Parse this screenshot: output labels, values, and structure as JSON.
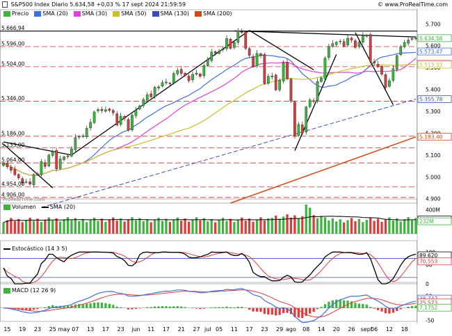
{
  "header": {
    "title": "S&P500 Index Diario 5.634,58 +0,03 % 17 sept 2024 21:59:59",
    "site": "© www.ProRealTime.com",
    "watermark": "ProRealTime.com"
  },
  "colors": {
    "up": "#3fb33f",
    "down": "#e03a3a",
    "sma20": "#3f6fe0",
    "sma30": "#e040e0",
    "sma50": "#c8c028",
    "sma130": "#3a4fbf",
    "sma200": "#d04a16",
    "grid": "#d03030"
  },
  "price_legend": [
    {
      "label": "Precio",
      "color": "#3fb33f",
      "icon": "candle-icon"
    },
    {
      "label": "SMA (20)",
      "color": "#3f6fe0",
      "icon": "line-icon"
    },
    {
      "label": "SMA (30)",
      "color": "#e040e0",
      "icon": "line-icon"
    },
    {
      "label": "SMA (50)",
      "color": "#c8c028",
      "icon": "line-icon"
    },
    {
      "label": "SMA (130)",
      "color": "#3a4fbf",
      "icon": "line-icon"
    },
    {
      "label": "SMA (200)",
      "color": "#d04a16",
      "icon": "line-icon"
    }
  ],
  "volume_legend": {
    "title": "Volumen",
    "sma": "SMA (20)"
  },
  "stoch_legend": {
    "title": "Estocástico (14 3 5)"
  },
  "macd_legend": {
    "title": "MACD (12 26 9)"
  },
  "chart_data": [
    {
      "type": "candlestick",
      "name": "S&P500 Index Diario",
      "ylim": [
        4880,
        5720
      ],
      "y_ticks": [
        {
          "v": 5700,
          "label": "5.700"
        },
        {
          "v": 5600,
          "label": "5.600"
        },
        {
          "v": 5500,
          "label": "5.500"
        },
        {
          "v": 5400,
          "label": "5.400"
        },
        {
          "v": 5300,
          "label": "5.300"
        },
        {
          "v": 5200,
          "label": "5.200"
        },
        {
          "v": 5100,
          "label": "5.100"
        },
        {
          "v": 5000,
          "label": "5.000"
        },
        {
          "v": 4900,
          "label": "4.900"
        }
      ],
      "hlines": [
        {
          "v": 5666.94,
          "label": "5.666,94"
        },
        {
          "v": 5596.0,
          "label": "5.596,00"
        },
        {
          "v": 5504.0,
          "label": "5.504,00"
        },
        {
          "v": 5346.0,
          "label": "5.346,00"
        },
        {
          "v": 5186.0,
          "label": "5.186,00"
        },
        {
          "v": 5133.0,
          "label": "5.133,00"
        },
        {
          "v": 5064.0,
          "label": "5.064,00"
        },
        {
          "v": 4954.0,
          "label": "4.954,00"
        },
        {
          "v": 4906.0,
          "label": "4.906,00"
        }
      ],
      "value_tags": [
        {
          "v": 5634.58,
          "label": "5.634,58",
          "color": "#3fb33f"
        },
        {
          "v": 5573.47,
          "label": "5.573,47",
          "color": "#3f6fe0"
        },
        {
          "v": 5517.07,
          "label": "5.517,07",
          "color": "#e040e0"
        },
        {
          "v": 5513.33,
          "label": "5.513,33",
          "color": "#c8c028"
        },
        {
          "v": 5355.78,
          "label": "5.355,78",
          "color": "#3a4fbf"
        },
        {
          "v": 5183.4,
          "label": "5.183,40",
          "color": "#d04a16"
        }
      ],
      "x_labels": [
        {
          "i": 1,
          "label": "15"
        },
        {
          "i": 5,
          "label": "19"
        },
        {
          "i": 9,
          "label": "23"
        },
        {
          "i": 13,
          "label": "25"
        },
        {
          "i": 16,
          "label": "may"
        },
        {
          "i": 19,
          "label": "07"
        },
        {
          "i": 23,
          "label": "13"
        },
        {
          "i": 27,
          "label": "17"
        },
        {
          "i": 31,
          "label": "23"
        },
        {
          "i": 35,
          "label": "jun"
        },
        {
          "i": 39,
          "label": "11"
        },
        {
          "i": 43,
          "label": "17"
        },
        {
          "i": 47,
          "label": "21"
        },
        {
          "i": 51,
          "label": "27"
        },
        {
          "i": 54,
          "label": "jul"
        },
        {
          "i": 57,
          "label": "05"
        },
        {
          "i": 61,
          "label": "11"
        },
        {
          "i": 65,
          "label": "17"
        },
        {
          "i": 69,
          "label": "23"
        },
        {
          "i": 73,
          "label": "29"
        },
        {
          "i": 76,
          "label": "ago"
        },
        {
          "i": 80,
          "label": "08"
        },
        {
          "i": 84,
          "label": "14"
        },
        {
          "i": 88,
          "label": "20"
        },
        {
          "i": 92,
          "label": "26"
        },
        {
          "i": 96,
          "label": "sept"
        },
        {
          "i": 98,
          "label": "06"
        },
        {
          "i": 102,
          "label": "12"
        },
        {
          "i": 106,
          "label": "18"
        }
      ],
      "close": [
        5062,
        5046,
        5030,
        5010,
        4995,
        4972,
        4978,
        4967,
        5011,
        5010,
        5070,
        5048,
        5100,
        5116,
        5037,
        5082,
        5092,
        5095,
        5128,
        5180,
        5185,
        5188,
        5222,
        5250,
        5297,
        5308,
        5303,
        5307,
        5304,
        5293,
        5237,
        5278,
        5268,
        5213,
        5282,
        5305,
        5325,
        5354,
        5376,
        5366,
        5410,
        5412,
        5431,
        5434,
        5428,
        5473,
        5487,
        5473,
        5464,
        5440,
        5469,
        5475,
        5460,
        5509,
        5537,
        5571,
        5567,
        5576,
        5586,
        5633,
        5588,
        5615,
        5668,
        5660,
        5588,
        5556,
        5505,
        5565,
        5555,
        5427,
        5460,
        5462,
        5398,
        5442,
        5522,
        5448,
        5347,
        5187,
        5240,
        5200,
        5320,
        5352,
        5345,
        5436,
        5453,
        5543,
        5597,
        5610,
        5616,
        5621,
        5598,
        5634,
        5626,
        5592,
        5616,
        5647,
        5648,
        5528,
        5520,
        5504,
        5470,
        5409,
        5440,
        5495,
        5555,
        5596,
        5615,
        5626,
        5634,
        5634.58
      ]
    },
    {
      "type": "bar",
      "name": "Volumen",
      "ylim": [
        0,
        420
      ],
      "y_ticks": [
        {
          "v": 400,
          "label": "400M"
        },
        {
          "v": 200,
          "label": "200M"
        }
      ],
      "value_tags": [
        {
          "v": 238,
          "label": "238M"
        },
        {
          "v": 232,
          "label": "232M"
        }
      ],
      "sma_label": "SMA (20)"
    },
    {
      "type": "line",
      "name": "Estocástico (14 3 5)",
      "ylim": [
        0,
        105
      ],
      "y_ticks": [
        {
          "v": 100,
          "label": "100"
        },
        {
          "v": 60,
          "label": "60"
        },
        {
          "v": 0,
          "label": "0"
        }
      ],
      "hlines": [
        80,
        20
      ],
      "value_tags": [
        {
          "v": 89.62,
          "label": "89,620"
        },
        {
          "v": 70.553,
          "label": "70,553"
        }
      ]
    },
    {
      "type": "line",
      "name": "MACD (12 26 9)",
      "ylim": [
        -55,
        65
      ],
      "y_ticks": [
        {
          "v": 50,
          "label": "50"
        },
        {
          "v": 0,
          "label": "0"
        },
        {
          "v": -50,
          "label": "-50"
        }
      ],
      "value_tags": [
        {
          "v": 38.747,
          "label": "38,747"
        },
        {
          "v": 25.573,
          "label": "25,573"
        },
        {
          "v": 7.1752,
          "label": "7,1752"
        }
      ]
    }
  ]
}
